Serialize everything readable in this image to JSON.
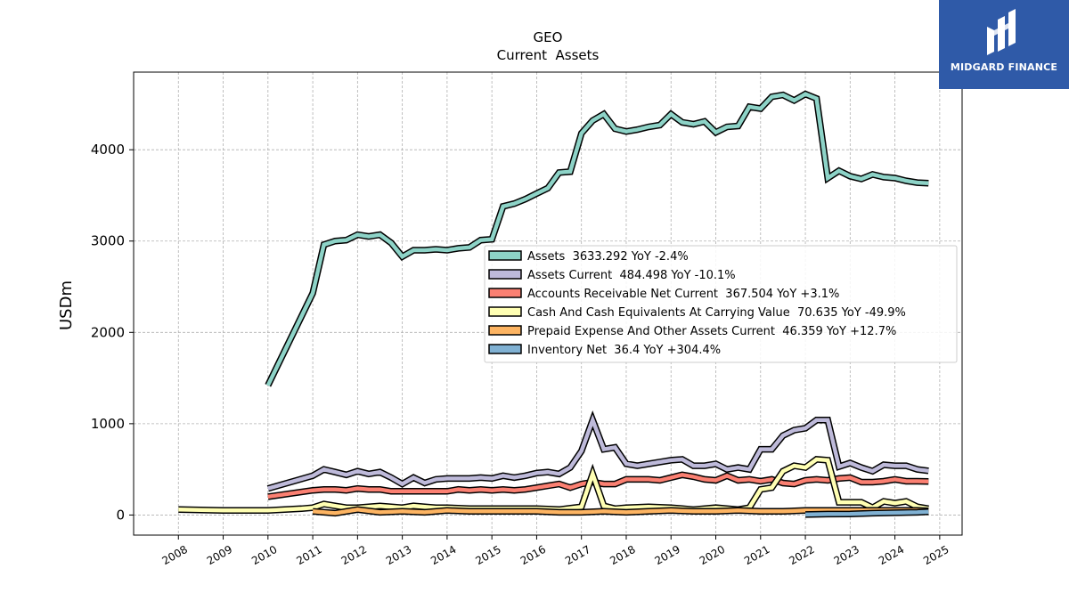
{
  "logo": {
    "text": "MIDGARD FINANCE",
    "color": "#2f5aa8"
  },
  "chart_data": {
    "type": "line",
    "title": "GEO",
    "subtitle": "Current  Assets",
    "xlabel": "",
    "ylabel": "USDm",
    "xlim": [
      2007.0,
      2025.5
    ],
    "ylim": [
      -220,
      4850
    ],
    "xticks": [
      2008,
      2009,
      2010,
      2011,
      2012,
      2013,
      2014,
      2015,
      2016,
      2017,
      2018,
      2019,
      2020,
      2021,
      2022,
      2023,
      2024,
      2025
    ],
    "yticks": [
      0,
      1000,
      2000,
      3000,
      4000
    ],
    "grid": true,
    "legend_position": "center-right",
    "series": [
      {
        "name": "Assets  3633.292 YoY -2.4%",
        "color": "#8dd3c7",
        "x": [
          2010.0,
          2011.0,
          2011.25,
          2011.5,
          2011.75,
          2012.0,
          2012.25,
          2012.5,
          2012.75,
          2013.0,
          2013.25,
          2013.5,
          2013.75,
          2014.0,
          2014.25,
          2014.5,
          2014.75,
          2015.0,
          2015.25,
          2015.5,
          2015.75,
          2016.0,
          2016.25,
          2016.5,
          2016.75,
          2017.0,
          2017.25,
          2017.5,
          2017.75,
          2018.0,
          2018.25,
          2018.5,
          2018.75,
          2019.0,
          2019.25,
          2019.5,
          2019.75,
          2020.0,
          2020.25,
          2020.5,
          2020.75,
          2021.0,
          2021.25,
          2021.5,
          2021.75,
          2022.0,
          2022.25,
          2022.5,
          2022.75,
          2023.0,
          2023.25,
          2023.5,
          2023.75,
          2024.0,
          2024.25,
          2024.5,
          2024.75
        ],
        "y": [
          1420,
          2430,
          2960,
          3000,
          3010,
          3070,
          3050,
          3070,
          2980,
          2830,
          2900,
          2900,
          2910,
          2900,
          2920,
          2930,
          3010,
          3020,
          3380,
          3410,
          3460,
          3520,
          3580,
          3750,
          3760,
          4180,
          4320,
          4390,
          4230,
          4200,
          4220,
          4250,
          4270,
          4390,
          4300,
          4280,
          4310,
          4190,
          4250,
          4260,
          4470,
          4450,
          4580,
          4600,
          4540,
          4610,
          4560,
          3690,
          3770,
          3710,
          3680,
          3730,
          3700,
          3690,
          3660,
          3640,
          3633
        ]
      },
      {
        "name": "Assets Current  484.498 YoY -10.1%",
        "color": "#bebada",
        "x": [
          2010.0,
          2011.0,
          2011.25,
          2011.5,
          2011.75,
          2012.0,
          2012.25,
          2012.5,
          2012.75,
          2013.0,
          2013.25,
          2013.5,
          2013.75,
          2014.0,
          2014.25,
          2014.5,
          2014.75,
          2015.0,
          2015.25,
          2015.5,
          2015.75,
          2016.0,
          2016.25,
          2016.5,
          2016.75,
          2017.0,
          2017.25,
          2017.5,
          2017.75,
          2018.0,
          2018.25,
          2018.5,
          2018.75,
          2019.0,
          2019.25,
          2019.5,
          2019.75,
          2020.0,
          2020.25,
          2020.5,
          2020.75,
          2021.0,
          2021.25,
          2021.5,
          2021.75,
          2022.0,
          2022.25,
          2022.5,
          2022.75,
          2023.0,
          2023.25,
          2023.5,
          2023.75,
          2024.0,
          2024.25,
          2024.5,
          2024.75
        ],
        "y": [
          290,
          430,
          500,
          470,
          440,
          480,
          450,
          470,
          410,
          340,
          410,
          350,
          390,
          400,
          400,
          400,
          410,
          400,
          430,
          410,
          430,
          460,
          470,
          450,
          520,
          700,
          1040,
          720,
          740,
          560,
          540,
          560,
          580,
          600,
          610,
          540,
          540,
          560,
          500,
          520,
          500,
          720,
          720,
          870,
          930,
          950,
          1040,
          1040,
          530,
          570,
          520,
          480,
          550,
          540,
          540,
          500,
          484
        ]
      },
      {
        "name": "Accounts Receivable Net Current  367.504 YoY +3.1%",
        "color": "#fb8072",
        "x": [
          2010.0,
          2011.0,
          2011.25,
          2011.5,
          2011.75,
          2012.0,
          2012.25,
          2012.5,
          2012.75,
          2013.0,
          2013.25,
          2013.5,
          2013.75,
          2014.0,
          2014.25,
          2014.5,
          2014.75,
          2015.0,
          2015.25,
          2015.5,
          2015.75,
          2016.0,
          2016.25,
          2016.5,
          2016.75,
          2017.0,
          2017.25,
          2017.5,
          2017.75,
          2018.0,
          2018.25,
          2018.5,
          2018.75,
          2019.0,
          2019.25,
          2019.5,
          2019.75,
          2020.0,
          2020.25,
          2020.5,
          2020.75,
          2021.0,
          2021.25,
          2021.5,
          2021.75,
          2022.0,
          2022.25,
          2022.5,
          2022.75,
          2023.0,
          2023.25,
          2023.5,
          2023.75,
          2024.0,
          2024.25,
          2024.5,
          2024.75
        ],
        "y": [
          200,
          270,
          280,
          280,
          270,
          290,
          280,
          280,
          260,
          260,
          260,
          260,
          260,
          260,
          280,
          270,
          280,
          270,
          280,
          270,
          280,
          300,
          320,
          340,
          300,
          340,
          360,
          340,
          340,
          390,
          390,
          390,
          380,
          410,
          440,
          420,
          390,
          380,
          430,
          380,
          390,
          370,
          390,
          350,
          340,
          380,
          390,
          380,
          400,
          410,
          360,
          360,
          370,
          390,
          370,
          370,
          367
        ]
      },
      {
        "name": "Cash And Cash Equivalents At Carrying Value  70.635 YoY -49.9%",
        "color": "#ffffb3",
        "x": [
          2008.0,
          2009.0,
          2010.0,
          2010.75,
          2011.0,
          2011.25,
          2011.5,
          2011.75,
          2012.0,
          2012.25,
          2012.5,
          2012.75,
          2013.0,
          2013.25,
          2013.5,
          2013.75,
          2014.0,
          2014.5,
          2015.0,
          2015.5,
          2016.0,
          2016.5,
          2017.0,
          2017.25,
          2017.5,
          2017.75,
          2018.0,
          2018.5,
          2019.0,
          2019.5,
          2020.0,
          2020.5,
          2020.75,
          2021.0,
          2021.25,
          2021.5,
          2021.75,
          2022.0,
          2022.25,
          2022.5,
          2022.75,
          2023.0,
          2023.25,
          2023.5,
          2023.75,
          2024.0,
          2024.25,
          2024.5,
          2024.75
        ],
        "y": [
          60,
          50,
          50,
          70,
          80,
          120,
          100,
          80,
          80,
          90,
          100,
          90,
          80,
          100,
          90,
          80,
          80,
          70,
          70,
          70,
          70,
          60,
          90,
          450,
          100,
          70,
          80,
          90,
          80,
          60,
          80,
          60,
          80,
          280,
          300,
          480,
          540,
          520,
          610,
          600,
          140,
          140,
          140,
          80,
          150,
          130,
          150,
          90,
          70
        ]
      },
      {
        "name": "Prepaid Expense And Other Assets Current  46.359 YoY +12.7%",
        "color": "#fdb462",
        "x": [
          2011.0,
          2011.5,
          2012.0,
          2012.5,
          2013.0,
          2013.5,
          2014.0,
          2014.5,
          2015.0,
          2015.5,
          2016.0,
          2016.5,
          2017.0,
          2017.5,
          2018.0,
          2018.5,
          2019.0,
          2019.5,
          2020.0,
          2020.5,
          2021.0,
          2021.5,
          2022.0,
          2022.5,
          2023.0,
          2023.5,
          2024.0,
          2024.5,
          2024.75
        ],
        "y": [
          40,
          20,
          60,
          30,
          40,
          30,
          50,
          40,
          40,
          40,
          40,
          30,
          30,
          40,
          30,
          40,
          50,
          40,
          40,
          50,
          40,
          40,
          50,
          50,
          50,
          50,
          50,
          50,
          46
        ]
      },
      {
        "name": "Inventory Net  36.4 YoY +304.4%",
        "color": "#80b1d3",
        "x": [
          2022.0,
          2022.5,
          2023.0,
          2023.5,
          2024.0,
          2024.5,
          2024.75
        ],
        "y": [
          5,
          10,
          12,
          20,
          25,
          30,
          36
        ]
      }
    ]
  }
}
